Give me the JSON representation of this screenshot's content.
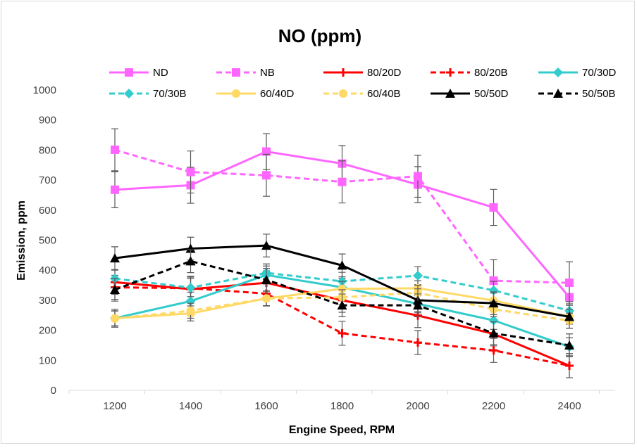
{
  "chart_data": {
    "type": "line",
    "title": "NO (ppm)",
    "xlabel": "Engine Speed, RPM",
    "ylabel": "Emission, ppm",
    "ylim": [
      0,
      1000
    ],
    "yticks": [
      0,
      100,
      200,
      300,
      400,
      500,
      600,
      700,
      800,
      900,
      1000
    ],
    "categories": [
      "1200",
      "1400",
      "1600",
      "1800",
      "2000",
      "2200",
      "2400"
    ],
    "grid": false,
    "legend_position": "top",
    "series": [
      {
        "name": "ND",
        "color": "#ff66ff",
        "dash": "solid",
        "marker": "square",
        "values": [
          668,
          683,
          795,
          755,
          685,
          609,
          310
        ],
        "err": 60
      },
      {
        "name": "NB",
        "color": "#ff66ff",
        "dash": "dashed",
        "marker": "square",
        "values": [
          801,
          727,
          716,
          694,
          713,
          365,
          358
        ],
        "err": 70
      },
      {
        "name": "80/20D",
        "color": "#ff0000",
        "dash": "solid",
        "marker": "plus",
        "values": [
          360,
          337,
          358,
          300,
          249,
          188,
          82
        ],
        "err": 40
      },
      {
        "name": "80/20B",
        "color": "#ff0000",
        "dash": "dashed",
        "marker": "plus",
        "values": [
          343,
          340,
          322,
          190,
          159,
          133,
          82
        ],
        "err": 40
      },
      {
        "name": "70/30D",
        "color": "#33cccc",
        "dash": "solid",
        "marker": "diamond",
        "values": [
          240,
          297,
          384,
          343,
          288,
          233,
          145
        ],
        "err": 30
      },
      {
        "name": "70/30B",
        "color": "#33cccc",
        "dash": "dashed",
        "marker": "diamond",
        "values": [
          372,
          342,
          391,
          363,
          382,
          333,
          265
        ],
        "err": 30
      },
      {
        "name": "60/40D",
        "color": "#ffd966",
        "dash": "solid",
        "marker": "circle",
        "values": [
          240,
          256,
          306,
          338,
          340,
          299,
          245
        ],
        "err": 25
      },
      {
        "name": "60/40B",
        "color": "#ffd966",
        "dash": "dashed",
        "marker": "circle",
        "values": [
          239,
          265,
          306,
          310,
          325,
          270,
          232
        ],
        "err": 25
      },
      {
        "name": "50/50D",
        "color": "#000000",
        "dash": "solid",
        "marker": "triangle",
        "values": [
          440,
          472,
          482,
          416,
          300,
          290,
          245
        ],
        "err": 38
      },
      {
        "name": "50/50B",
        "color": "#000000",
        "dash": "dashed",
        "marker": "triangle",
        "values": [
          335,
          430,
          368,
          283,
          283,
          190,
          150
        ],
        "err": 38
      }
    ]
  }
}
